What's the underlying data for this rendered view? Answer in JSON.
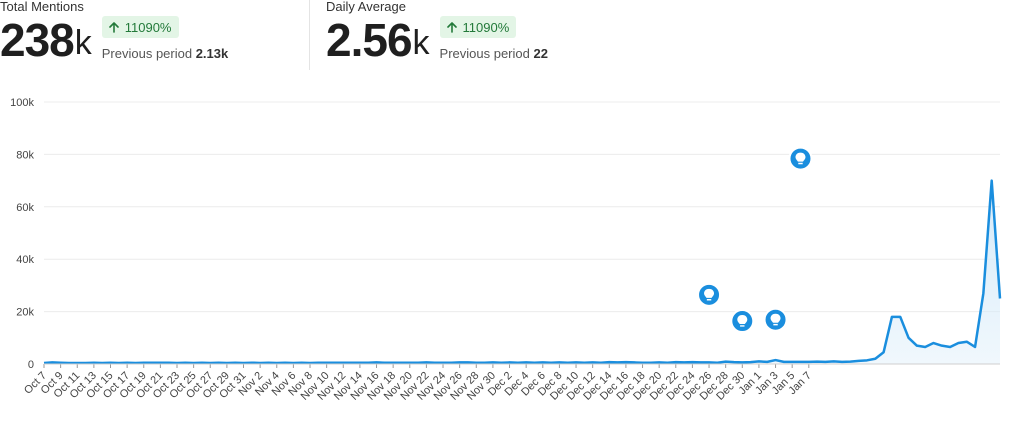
{
  "stats": [
    {
      "label": "Total Mentions",
      "value": "238",
      "unit": "k",
      "badge": "11090%",
      "prev_label": "Previous period",
      "prev_value": "2.13k"
    },
    {
      "label": "Daily Average",
      "value": "2.56",
      "unit": "k",
      "badge": "11090%",
      "prev_label": "Previous period",
      "prev_value": "22"
    }
  ],
  "colors": {
    "line": "#1a8ede",
    "fill": "#d5eaf9",
    "badge_bg": "#e3f5e6",
    "badge_text": "#237a3a",
    "marker": "#1a8ede"
  },
  "chart_data": {
    "type": "area",
    "y_ticks": [
      "0",
      "20k",
      "40k",
      "60k",
      "80k",
      "100k"
    ],
    "ylim": [
      0,
      100000
    ],
    "grid": true,
    "x_tick_labels": [
      "Oct 7",
      "Oct 9",
      "Oct 11",
      "Oct 13",
      "Oct 15",
      "Oct 17",
      "Oct 19",
      "Oct 21",
      "Oct 23",
      "Oct 25",
      "Oct 27",
      "Oct 29",
      "Oct 31",
      "Nov 2",
      "Nov 4",
      "Nov 6",
      "Nov 8",
      "Nov 10",
      "Nov 12",
      "Nov 14",
      "Nov 16",
      "Nov 18",
      "Nov 20",
      "Nov 22",
      "Nov 24",
      "Nov 26",
      "Nov 28",
      "Nov 30",
      "Dec 2",
      "Dec 4",
      "Dec 6",
      "Dec 8",
      "Dec 10",
      "Dec 12",
      "Dec 14",
      "Dec 16",
      "Dec 18",
      "Dec 20",
      "Dec 22",
      "Dec 24",
      "Dec 26",
      "Dec 28",
      "Dec 30",
      "Jan 1",
      "Jan 3",
      "Jan 5",
      "Jan 7"
    ],
    "series": [
      {
        "values": [
          400,
          600,
          500,
          400,
          400,
          400,
          500,
          400,
          500,
          400,
          500,
          400,
          500,
          500,
          500,
          500,
          400,
          500,
          400,
          500,
          400,
          500,
          400,
          500,
          400,
          500,
          400,
          500,
          400,
          500,
          400,
          500,
          400,
          500,
          500,
          500,
          500,
          500,
          500,
          500,
          600,
          500,
          500,
          500,
          500,
          500,
          600,
          500,
          500,
          500,
          600,
          600,
          500,
          500,
          600,
          500,
          600,
          500,
          600,
          500,
          600,
          500,
          600,
          500,
          600,
          500,
          600,
          500,
          700,
          600,
          700,
          600,
          500,
          500,
          600,
          500,
          700,
          600,
          700,
          600,
          600,
          500,
          900,
          700,
          600,
          700,
          1000,
          800,
          1500,
          800,
          800,
          800,
          800,
          900,
          800,
          1000,
          800,
          900,
          1200,
          1400,
          2000,
          4500,
          18000,
          18000,
          10000,
          7000,
          6500,
          8000,
          7000,
          6500,
          8000,
          8500,
          6500,
          27000,
          70000,
          25000
        ]
      }
    ],
    "annotations": [
      {
        "date": "Dec 26",
        "value": 18000,
        "icon": "lightbulb-icon"
      },
      {
        "date": "Dec 30",
        "value": 8000,
        "icon": "lightbulb-icon"
      },
      {
        "date": "Jan 3",
        "value": 8500,
        "icon": "lightbulb-icon"
      },
      {
        "date": "Jan 6",
        "value": 70000,
        "icon": "lightbulb-icon"
      }
    ]
  }
}
